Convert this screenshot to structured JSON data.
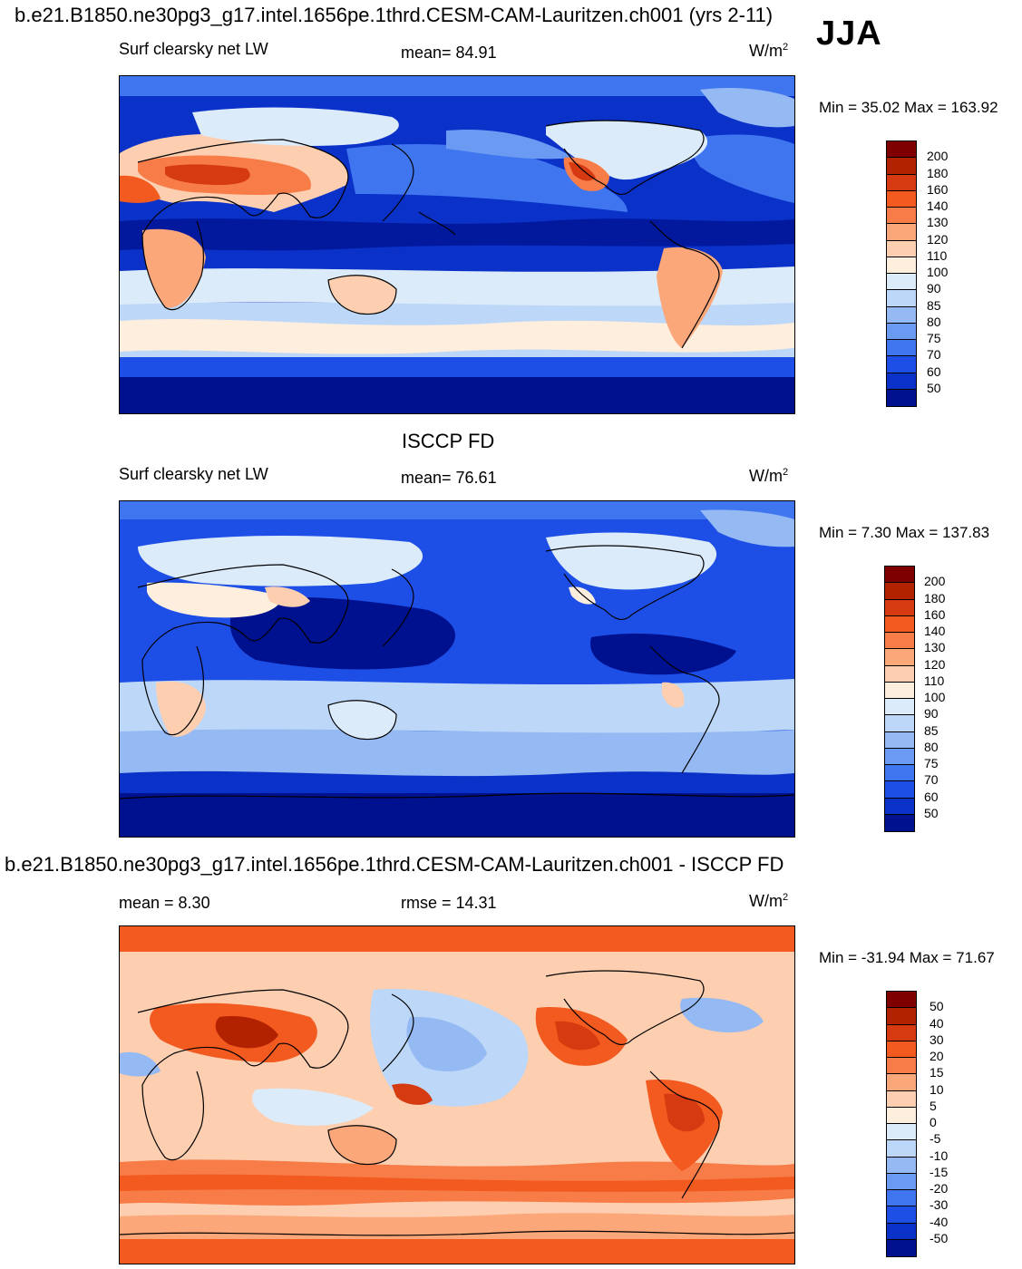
{
  "page": {
    "header_title": "b.e21.B1850.ne30pg3_g17.intel.1656pe.1thrd.CESM-CAM-Lauritzen.ch001 (yrs 2-11)",
    "season": "JJA"
  },
  "panels": [
    {
      "title": "",
      "variable": "Surf clearsky net LW",
      "stat_left": "",
      "stat_center": "mean=  84.91",
      "units": "W/m",
      "units_exp": "2",
      "minmax": "Min =  35.02 Max = 163.92",
      "palette": "abs"
    },
    {
      "title": "ISCCP FD",
      "variable": "Surf clearsky net LW",
      "stat_left": "",
      "stat_center": "mean=  76.61",
      "units": "W/m",
      "units_exp": "2",
      "minmax": "Min =   7.30 Max = 137.83",
      "palette": "abs"
    },
    {
      "title": "b.e21.B1850.ne30pg3_g17.intel.1656pe.1thrd.CESM-CAM-Lauritzen.ch001 - ISCCP FD",
      "variable": "",
      "stat_left": "mean =   8.30",
      "stat_center": "rmse =  14.31",
      "units": "W/m",
      "units_exp": "2",
      "minmax": "Min = -31.94 Max =  71.67",
      "palette": "diff"
    }
  ],
  "colorbars": {
    "abs": {
      "labels": [
        "200",
        "180",
        "160",
        "140",
        "130",
        "120",
        "110",
        "100",
        "90",
        "85",
        "80",
        "75",
        "70",
        "60",
        "50"
      ],
      "colors": [
        "#7f0000",
        "#b22200",
        "#d63a10",
        "#f25a20",
        "#f77c48",
        "#fba77a",
        "#fdcfb0",
        "#fdeede",
        "#dcebfa",
        "#bcd7f7",
        "#94b9f3",
        "#6a9af1",
        "#3f76ef",
        "#1d4fe6",
        "#0a31c8",
        "#00118f"
      ]
    },
    "diff": {
      "labels": [
        "50",
        "40",
        "30",
        "20",
        "15",
        "10",
        "5",
        "0",
        "-5",
        "-10",
        "-15",
        "-20",
        "-30",
        "-40",
        "-50"
      ],
      "colors": [
        "#7f0000",
        "#b22200",
        "#d63a10",
        "#f25a20",
        "#f77c48",
        "#fba77a",
        "#fdcfb0",
        "#fdeede",
        "#dcebfa",
        "#bcd7f7",
        "#94b9f3",
        "#6a9af1",
        "#3f76ef",
        "#1d4fe6",
        "#0a31c8",
        "#00118f"
      ]
    }
  }
}
